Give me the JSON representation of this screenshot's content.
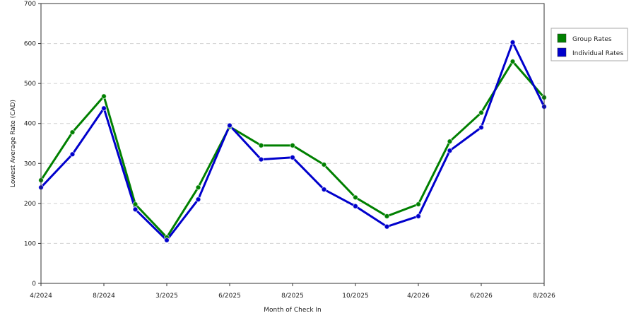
{
  "chart_data": {
    "type": "line",
    "xlabel": "Month of Check In",
    "ylabel": "Lowest Average Rate (CAD)",
    "ylim": [
      0,
      700
    ],
    "yticks": [
      0,
      100,
      200,
      300,
      400,
      500,
      600,
      700
    ],
    "x_tick_labels": [
      "4/2024",
      "8/2024",
      "3/2025",
      "6/2025",
      "8/2025",
      "10/2025",
      "4/2026",
      "6/2026",
      "8/2026"
    ],
    "x_tick_indices": [
      0,
      2,
      4,
      6,
      8,
      10,
      12,
      14,
      16
    ],
    "grid": true,
    "legend_position": "right",
    "series": [
      {
        "name": "Group Rates",
        "color": "#008000",
        "values": [
          258,
          378,
          468,
          198,
          115,
          240,
          392,
          345,
          345,
          297,
          215,
          168,
          198,
          355,
          427,
          555,
          465
        ]
      },
      {
        "name": "Individual Rates",
        "color": "#0000cc",
        "values": [
          240,
          323,
          438,
          185,
          108,
          210,
          395,
          310,
          315,
          235,
          193,
          142,
          168,
          332,
          390,
          603,
          442
        ]
      }
    ]
  }
}
